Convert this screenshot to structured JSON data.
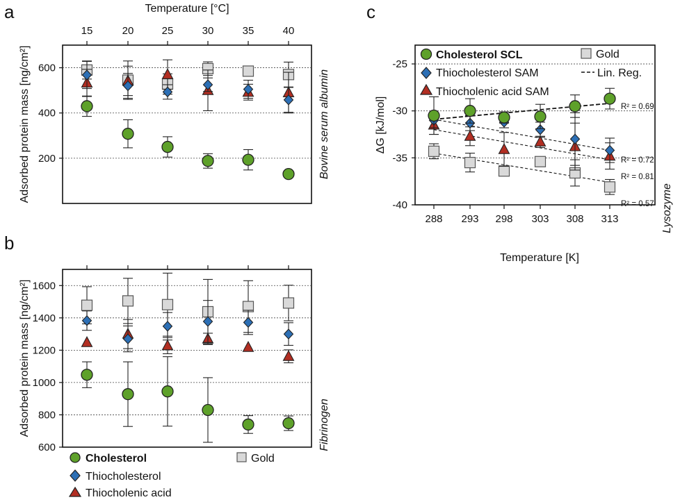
{
  "panel_labels": {
    "a": "a",
    "b": "b",
    "c": "c"
  },
  "colors": {
    "cholesterol": "#5ea12a",
    "thiochol": "#2c6fb5",
    "thiocholenic": "#b22e22",
    "gold": "#d9d9d9",
    "outline": "#222222"
  },
  "chart_data": [
    {
      "id": "a",
      "type": "scatter",
      "side_label": "Bovine serum albumin",
      "xlabel": "Temperature [°C]",
      "ylabel": "Adsorbed protein mass [ng/cm²]",
      "categories": [
        "15",
        "20",
        "25",
        "30",
        "35",
        "40"
      ],
      "ylim": [
        0,
        700
      ],
      "yticks": [
        "200",
        "400",
        "600"
      ],
      "gridlines": [
        200,
        400,
        600
      ],
      "series": [
        {
          "name": "Cholesterol",
          "marker": "circle",
          "color": "#5ea12a",
          "values": [
            430,
            308,
            250,
            188,
            193,
            130
          ],
          "err": [
            45,
            62,
            45,
            32,
            45,
            0
          ]
        },
        {
          "name": "Thiocholesterol",
          "marker": "diamond",
          "color": "#2c6fb5",
          "values": [
            568,
            520,
            493,
            525,
            505,
            458
          ],
          "err": [
            60,
            55,
            32,
            30,
            40,
            55
          ]
        },
        {
          "name": "Thiocholenic acid",
          "marker": "triangle",
          "color": "#b22e22",
          "values": [
            533,
            542,
            570,
            500,
            492,
            490
          ],
          "err": [
            60,
            65,
            65,
            90,
            35,
            90
          ]
        },
        {
          "name": "Gold",
          "marker": "square",
          "color": "#d9d9d9",
          "values": [
            590,
            545,
            528,
            596,
            585,
            570
          ],
          "err": [
            40,
            85,
            45,
            30,
            0,
            55
          ]
        }
      ]
    },
    {
      "id": "b",
      "type": "scatter",
      "side_label": "Fibrinogen",
      "ylabel": "Adsorbed protein mass [ng/cm²]",
      "categories": [
        "15",
        "20",
        "25",
        "30",
        "35",
        "40"
      ],
      "ylim": [
        600,
        1700
      ],
      "yticks": [
        "600",
        "800",
        "1000",
        "1200",
        "1400",
        "1600"
      ],
      "gridlines": [
        800,
        1000,
        1200,
        1400,
        1600
      ],
      "legend": [
        "Cholesterol",
        "Gold",
        "Thiocholesterol",
        "Thiocholenic acid"
      ],
      "series": [
        {
          "name": "Cholesterol",
          "marker": "circle",
          "color": "#5ea12a",
          "values": [
            1048,
            928,
            945,
            830,
            740,
            748
          ],
          "err": [
            80,
            200,
            215,
            200,
            55,
            45
          ]
        },
        {
          "name": "Thiocholesterol",
          "marker": "diamond",
          "color": "#2c6fb5",
          "values": [
            1383,
            1270,
            1348,
            1378,
            1372,
            1300
          ],
          "err": [
            60,
            80,
            85,
            130,
            75,
            70
          ]
        },
        {
          "name": "Thiocholenic acid",
          "marker": "triangle",
          "color": "#b22e22",
          "values": [
            1248,
            1300,
            1228,
            1270,
            1218,
            1162
          ],
          "err": [
            0,
            90,
            50,
            35,
            0,
            40
          ]
        },
        {
          "name": "Gold",
          "marker": "square",
          "color": "#d9d9d9",
          "values": [
            1478,
            1505,
            1482,
            1438,
            1470,
            1492
          ],
          "err": [
            115,
            140,
            195,
            200,
            160,
            110
          ]
        }
      ]
    },
    {
      "id": "c",
      "type": "scatter",
      "side_label": "Lysozyme",
      "xlabel": "Temperature [K]",
      "ylabel": "ΔG [kJ/mol]",
      "categories": [
        "288",
        "293",
        "298",
        "303",
        "308",
        "313"
      ],
      "ylim": [
        -40,
        -23
      ],
      "yticks": [
        "-40",
        "-35",
        "-30",
        "-25"
      ],
      "gridlines": [
        -25,
        -30,
        -35
      ],
      "legend": [
        "Cholesterol SCL",
        "Gold",
        "Thiocholesterol SAM",
        "Lin. Reg.",
        "Thiocholenic acid SAM"
      ],
      "series": [
        {
          "name": "Cholesterol SCL",
          "marker": "circle",
          "color": "#5ea12a",
          "values": [
            -30.5,
            -30.0,
            -30.7,
            -30.6,
            -29.5,
            -28.7
          ],
          "err": [
            2.0,
            1.3,
            0.6,
            1.3,
            1.2,
            1.1
          ],
          "reg": [
            -30.9,
            -29.2
          ],
          "r2": "R² = 0.69"
        },
        {
          "name": "Thiocholesterol SAM",
          "marker": "diamond",
          "color": "#2c6fb5",
          "values": [
            -31.0,
            -31.3,
            -31.2,
            -32.0,
            -33.0,
            -34.2
          ],
          "err": [
            0.8,
            0.8,
            0.6,
            0.8,
            2.8,
            1.3
          ],
          "reg": [
            -30.9,
            -34.2
          ],
          "r2": "R² = 0.72"
        },
        {
          "name": "Thiocholenic acid SAM",
          "marker": "triangle",
          "color": "#b22e22",
          "values": [
            -31.5,
            -32.7,
            -34.1,
            -33.3,
            -33.8,
            -34.8
          ],
          "err": [
            1.0,
            1.0,
            1.8,
            0.6,
            2.5,
            1.4
          ],
          "reg": [
            -32.0,
            -35.2
          ],
          "r2": "R² = 0.81"
        },
        {
          "name": "Gold",
          "marker": "square",
          "color": "#d9d9d9",
          "values": [
            -34.3,
            -35.5,
            -36.4,
            -35.4,
            -36.6,
            -38.1
          ],
          "err": [
            0.8,
            1.0,
            0.5,
            0,
            1.4,
            0.8
          ],
          "reg": [
            -34.5,
            -37.6
          ],
          "r2": "R² = 0.57"
        }
      ]
    }
  ]
}
